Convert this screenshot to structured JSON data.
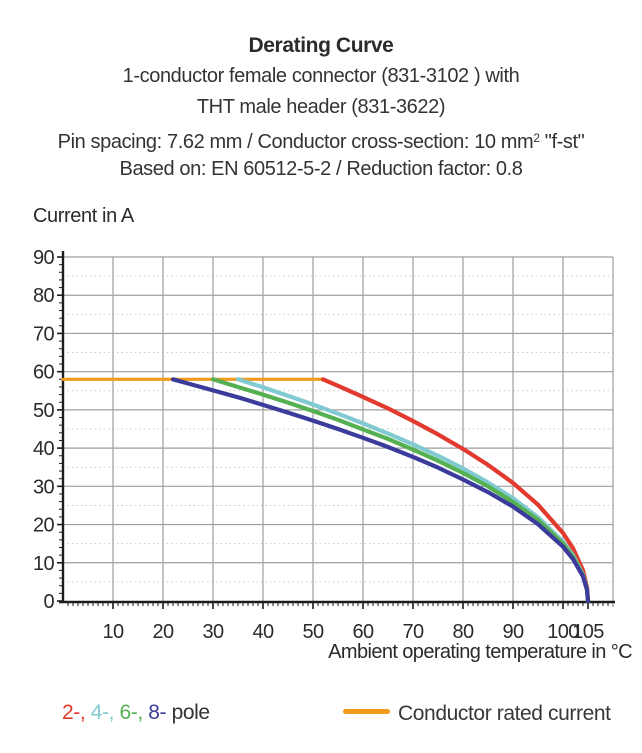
{
  "header": {
    "title": "Derating Curve",
    "subtitle1": "1-conductor female connector (831-3102 ) with",
    "subtitle2": "THT male header (831-3622)",
    "subtitle3_pre": "Pin spacing: 7.62 mm / Conductor cross-section: 10 mm",
    "subtitle3_sup": "2",
    "subtitle3_post": " \"f-st\"",
    "subtitle4": "Based on: EN 60512-5-2 / Reduction factor: 0.8"
  },
  "chart_data": {
    "type": "line",
    "title": "Derating Curve",
    "xlabel": "Ambient operating temperature in °C",
    "ylabel": "Current in A",
    "xlim": [
      0,
      110
    ],
    "ylim": [
      0,
      90
    ],
    "grid": true,
    "x_gridlines": [
      10,
      20,
      30,
      40,
      50,
      60,
      70,
      80,
      90,
      100,
      110
    ],
    "y_gridlines": [
      10,
      20,
      30,
      40,
      50,
      60,
      70,
      80,
      90
    ],
    "y_minor_gridlines": [
      5,
      15,
      25,
      35,
      45,
      55,
      65,
      75,
      85
    ],
    "x_ticks": [
      {
        "value": 10,
        "label": "10"
      },
      {
        "value": 20,
        "label": "20"
      },
      {
        "value": 30,
        "label": "30"
      },
      {
        "value": 40,
        "label": "40"
      },
      {
        "value": 50,
        "label": "50"
      },
      {
        "value": 60,
        "label": "60"
      },
      {
        "value": 70,
        "label": "70"
      },
      {
        "value": 80,
        "label": "80"
      },
      {
        "value": 90,
        "label": "90"
      },
      {
        "value": 100,
        "label": "100"
      },
      {
        "value": 105,
        "label": "105"
      }
    ],
    "y_ticks": [
      {
        "value": 0,
        "label": "0"
      },
      {
        "value": 10,
        "label": "10"
      },
      {
        "value": 20,
        "label": "20"
      },
      {
        "value": 30,
        "label": "30"
      },
      {
        "value": 40,
        "label": "40"
      },
      {
        "value": 50,
        "label": "50"
      },
      {
        "value": 60,
        "label": "60"
      },
      {
        "value": 70,
        "label": "70"
      },
      {
        "value": 80,
        "label": "80"
      },
      {
        "value": 90,
        "label": "90"
      }
    ],
    "x_minor_tick_step": 1,
    "y_minor_tick_step": 2,
    "rated_current_a": 58,
    "max_temperature_c": 105,
    "series": [
      {
        "name": "Conductor rated current",
        "color": "#F29A1C",
        "width": 3.2,
        "points": [
          [
            0,
            58
          ],
          [
            52,
            58
          ]
        ]
      },
      {
        "name": "2-pole",
        "color": "#E23A2E",
        "width": 4.2,
        "points": [
          [
            52,
            58
          ],
          [
            55,
            56.3
          ],
          [
            60,
            53.4
          ],
          [
            65,
            50.4
          ],
          [
            70,
            47.1
          ],
          [
            75,
            43.6
          ],
          [
            80,
            39.8
          ],
          [
            85,
            35.6
          ],
          [
            90,
            30.9
          ],
          [
            95,
            25.2
          ],
          [
            100,
            17.8
          ],
          [
            102,
            13.8
          ],
          [
            104,
            8.0
          ],
          [
            104.8,
            3.6
          ],
          [
            105,
            0
          ]
        ]
      },
      {
        "name": "4-pole",
        "color": "#82CAD1",
        "width": 4.2,
        "points": [
          [
            35,
            58
          ],
          [
            40,
            55.9
          ],
          [
            45,
            53.7
          ],
          [
            50,
            51.4
          ],
          [
            55,
            49.0
          ],
          [
            60,
            46.5
          ],
          [
            65,
            43.8
          ],
          [
            70,
            41.0
          ],
          [
            75,
            38.0
          ],
          [
            80,
            34.7
          ],
          [
            85,
            31.0
          ],
          [
            90,
            26.9
          ],
          [
            95,
            21.9
          ],
          [
            100,
            15.5
          ],
          [
            102,
            12.0
          ],
          [
            104,
            6.9
          ],
          [
            104.8,
            3.1
          ],
          [
            105,
            0
          ]
        ]
      },
      {
        "name": "6-pole",
        "color": "#55B052",
        "width": 4.2,
        "points": [
          [
            30,
            58
          ],
          [
            35,
            56.0
          ],
          [
            40,
            54.0
          ],
          [
            45,
            51.9
          ],
          [
            50,
            49.7
          ],
          [
            55,
            47.4
          ],
          [
            60,
            44.9
          ],
          [
            65,
            42.4
          ],
          [
            70,
            39.6
          ],
          [
            75,
            36.7
          ],
          [
            80,
            33.5
          ],
          [
            85,
            30.0
          ],
          [
            90,
            25.9
          ],
          [
            95,
            21.2
          ],
          [
            100,
            15.0
          ],
          [
            102,
            11.6
          ],
          [
            104,
            6.7
          ],
          [
            104.8,
            3.0
          ],
          [
            105,
            0
          ]
        ]
      },
      {
        "name": "8-pole",
        "color": "#3A3B9B",
        "width": 4.2,
        "points": [
          [
            22,
            58
          ],
          [
            25,
            56.9
          ],
          [
            30,
            55.1
          ],
          [
            35,
            53.3
          ],
          [
            40,
            51.3
          ],
          [
            45,
            49.3
          ],
          [
            50,
            47.2
          ],
          [
            55,
            45.0
          ],
          [
            60,
            42.7
          ],
          [
            65,
            40.3
          ],
          [
            70,
            37.7
          ],
          [
            75,
            34.9
          ],
          [
            80,
            31.8
          ],
          [
            85,
            28.5
          ],
          [
            90,
            24.7
          ],
          [
            95,
            20.1
          ],
          [
            100,
            14.2
          ],
          [
            102,
            11.0
          ],
          [
            104,
            6.4
          ],
          [
            104.8,
            2.9
          ],
          [
            105,
            0
          ]
        ]
      }
    ],
    "legend_position": "bottom"
  },
  "legend": {
    "pole_items": [
      {
        "label": "2-, ",
        "color": "#E23A2E"
      },
      {
        "label": "4-, ",
        "color": "#82CAD1"
      },
      {
        "label": "6-, ",
        "color": "#55B052"
      },
      {
        "label": "8- ",
        "color": "#3A3B9B"
      }
    ],
    "pole_suffix": "pole",
    "rated_label": "Conductor rated current",
    "rated_color": "#F29A1C"
  },
  "colors": {
    "grid_major": "#9E9E9E",
    "grid_minor": "#C9C9C9",
    "axis": "#1d1d1d",
    "tick_label": "#2b2b2b"
  }
}
